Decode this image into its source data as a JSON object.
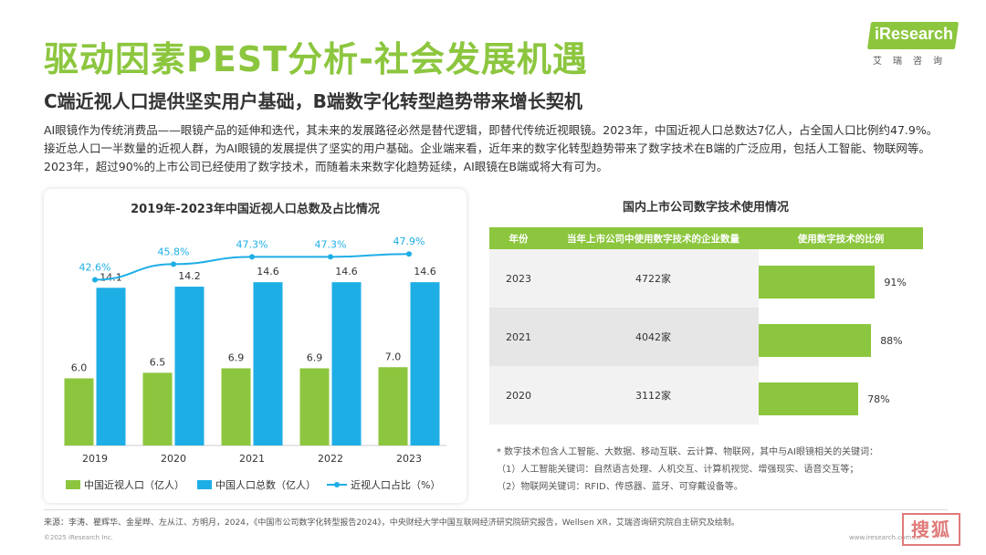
{
  "header": {
    "title": "驱动因素PEST分析-社会发展机遇",
    "subtitle": "C端近视人口提供坚实用户基础，B端数字化转型趋势带来增长契机",
    "logo_text": "iResearch",
    "logo_sub": "艾瑞咨询"
  },
  "intro": "AI眼镜作为传统消费品——眼镜产品的延伸和迭代，其未来的发展路径必然是替代逻辑，即替代传统近视眼镜。2023年，中国近视人口总数达7亿人，占全国人口比例约47.9%。接近总人口一半数量的近视人群，为AI眼镜的发展提供了坚实的用户基础。企业端来看，近年来的数字化转型趋势带来了数字技术在B端的广泛应用，包括人工智能、物联网等。2023年，超过90%的上市公司已经使用了数字技术，而随着未来数字化趋势延续，AI眼镜在B端或将大有可为。",
  "chart_data": {
    "type": "bar",
    "title": "2019年-2023年中国近视人口总数及占比情况",
    "categories": [
      "2019",
      "2020",
      "2021",
      "2022",
      "2023"
    ],
    "series": [
      {
        "name": "中国近视人口（亿人）",
        "type": "bar",
        "color": "#8cc63e",
        "values": [
          6.0,
          6.5,
          6.9,
          6.9,
          7.0
        ],
        "labels": [
          "6.0",
          "6.5",
          "6.9",
          "6.9",
          "7.0"
        ]
      },
      {
        "name": "中国人口总数（亿人）",
        "type": "bar",
        "color": "#1eaee6",
        "values": [
          14.1,
          14.2,
          14.6,
          14.6,
          14.6
        ],
        "labels": [
          "14.1",
          "14.2",
          "14.6",
          "14.6",
          "14.6"
        ]
      },
      {
        "name": "近视人口占比（%）",
        "type": "line",
        "color": "#1eaee6",
        "values": [
          42.6,
          45.8,
          47.3,
          47.3,
          47.9
        ],
        "labels": [
          "42.6%",
          "45.8%",
          "47.3%",
          "47.3%",
          "47.9%"
        ]
      }
    ],
    "bar_ylim": [
      0,
      16
    ],
    "line_ylim": [
      35,
      50
    ],
    "legend_position": "bottom"
  },
  "table": {
    "title": "国内上市公司数字技术使用情况",
    "headers": [
      "年份",
      "当年上市公司中使用数字技术的企业数量",
      "使用数字技术的比例"
    ],
    "rows": [
      {
        "year": "2023",
        "count": "4722家",
        "ratio": 91,
        "ratio_label": "91%"
      },
      {
        "year": "2021",
        "count": "4042家",
        "ratio": 88,
        "ratio_label": "88%"
      },
      {
        "year": "2020",
        "count": "3112家",
        "ratio": 78,
        "ratio_label": "78%"
      }
    ],
    "bar_color": "#8cc63e"
  },
  "notes": [
    "* 数字技术包含人工智能、大数据、移动互联、云计算、物联网，其中与AI眼镜相关的关键词：",
    "（1）人工智能关键词：自然语言处理、人机交互、计算机视觉、增强现实、语音交互等；",
    "（2）物联网关键词：RFID、传感器、蓝牙、可穿戴设备等。"
  ],
  "source": "来源：李涛、瞿辉华、金星晔、左从江、方明月，2024，《中国市公司数字化转型报告2024》，中央财经大学中国互联网经济研究院研究报告，Wellsen XR，艾瑞咨询研究院自主研究及绘制。",
  "copyright": "©2025 iResearch Inc.",
  "url": "www.iresearch.com.cn",
  "stamp": "搜狐"
}
